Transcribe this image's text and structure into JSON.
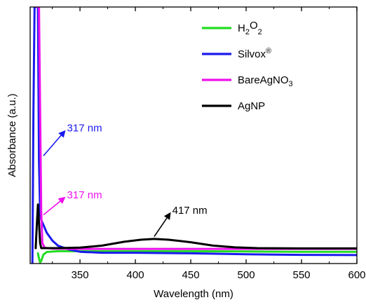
{
  "chart_data": {
    "type": "line",
    "title": "",
    "xlabel": "Wavelength (nm)",
    "ylabel": "Absorbance (a.u.)",
    "xlim": [
      305,
      600
    ],
    "ylim": [
      0,
      1
    ],
    "x_ticks": [
      350,
      400,
      450,
      500,
      550,
      600
    ],
    "y_ticks": [],
    "legend_placement": "top-right",
    "legend": [
      {
        "label": "H",
        "sub1": "2",
        "mid": "O",
        "sub2": "2",
        "sup": "",
        "color": "#22dd22"
      },
      {
        "label": "Silvox",
        "sub1": "",
        "mid": "",
        "sub2": "",
        "sup": "®",
        "color": "#1a1aee"
      },
      {
        "label": "BareAgNO",
        "sub1": "",
        "mid": "",
        "sub2": "3",
        "sup": "",
        "color": "#ee11ee"
      },
      {
        "label": "AgNP",
        "sub1": "",
        "mid": "",
        "sub2": "",
        "sup": "",
        "color": "#000000"
      }
    ],
    "series": [
      {
        "name": "H2O2",
        "color": "#22dd22",
        "points": [
          [
            312,
            0.04
          ],
          [
            313,
            0.02
          ],
          [
            314,
            0.005
          ],
          [
            315,
            0.01
          ],
          [
            317,
            0.035
          ],
          [
            320,
            0.045
          ],
          [
            330,
            0.048
          ],
          [
            350,
            0.048
          ],
          [
            400,
            0.048
          ],
          [
            450,
            0.048
          ],
          [
            500,
            0.047
          ],
          [
            550,
            0.046
          ],
          [
            600,
            0.046
          ]
        ]
      },
      {
        "name": "Silvox®",
        "color": "#1a1aee",
        "points": [
          [
            307,
            0.0
          ],
          [
            308,
            0.6
          ],
          [
            309,
            1.0
          ],
          [
            310,
            1.0
          ],
          [
            311,
            1.0
          ],
          [
            312,
            1.0
          ],
          [
            313,
            0.4
          ],
          [
            314,
            0.2
          ],
          [
            315,
            0.17
          ],
          [
            317,
            0.15
          ],
          [
            320,
            0.12
          ],
          [
            325,
            0.09
          ],
          [
            330,
            0.07
          ],
          [
            340,
            0.055
          ],
          [
            350,
            0.046
          ],
          [
            370,
            0.042
          ],
          [
            400,
            0.042
          ],
          [
            450,
            0.04
          ],
          [
            500,
            0.036
          ],
          [
            550,
            0.034
          ],
          [
            600,
            0.033
          ]
        ]
      },
      {
        "name": "BareAgNO3",
        "color": "#ee11ee",
        "points": [
          [
            311,
            1.0
          ],
          [
            312,
            1.0
          ],
          [
            313,
            1.0
          ],
          [
            314,
            0.6
          ],
          [
            315,
            0.2
          ],
          [
            316,
            0.08
          ],
          [
            318,
            0.062
          ],
          [
            325,
            0.058
          ],
          [
            350,
            0.057
          ],
          [
            400,
            0.057
          ],
          [
            500,
            0.057
          ],
          [
            600,
            0.057
          ]
        ]
      },
      {
        "name": "AgNP",
        "color": "#000000",
        "points": [
          [
            310,
            0.06
          ],
          [
            311,
            0.15
          ],
          [
            312,
            0.23
          ],
          [
            313,
            0.16
          ],
          [
            314,
            0.08
          ],
          [
            315,
            0.06
          ],
          [
            330,
            0.06
          ],
          [
            350,
            0.062
          ],
          [
            370,
            0.07
          ],
          [
            390,
            0.085
          ],
          [
            405,
            0.093
          ],
          [
            417,
            0.096
          ],
          [
            430,
            0.093
          ],
          [
            450,
            0.083
          ],
          [
            470,
            0.07
          ],
          [
            490,
            0.063
          ],
          [
            510,
            0.06
          ],
          [
            550,
            0.059
          ],
          [
            600,
            0.059
          ]
        ]
      }
    ],
    "annotations": [
      {
        "text": "317 nm",
        "color": "#1a1aee",
        "x": 317,
        "y": 0.42,
        "label_x": 337,
        "label_y": 0.52
      },
      {
        "text": "317 nm",
        "color": "#ee11ee",
        "x": 317,
        "y": 0.19,
        "label_x": 337,
        "label_y": 0.26
      },
      {
        "text": "417 nm",
        "color": "#000000",
        "x": 417,
        "y": 0.105,
        "label_x": 432,
        "label_y": 0.2
      }
    ]
  }
}
